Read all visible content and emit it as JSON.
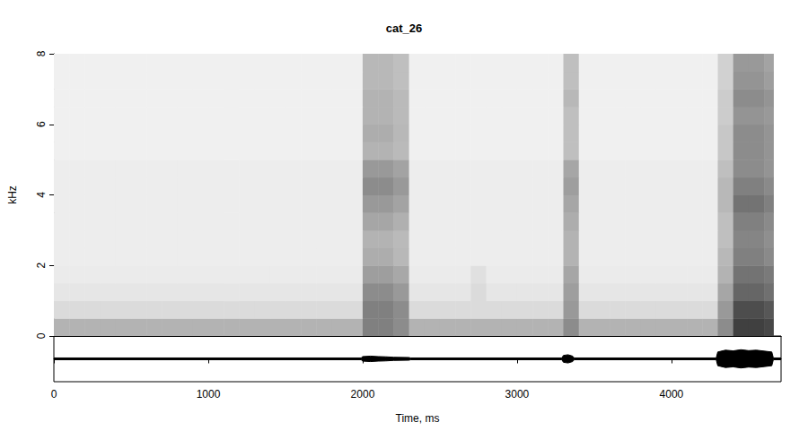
{
  "chart_data": [
    {
      "type": "heatmap",
      "title": "cat_26",
      "y_label": "kHz",
      "xlim": [
        0,
        4710
      ],
      "ylim": [
        0,
        8
      ],
      "yticks": [
        0,
        2,
        4,
        6,
        8
      ],
      "grid": false,
      "tick_labels": "y",
      "zlim": [
        0,
        100
      ],
      "time_bins": [
        0,
        100,
        200,
        300,
        400,
        500,
        600,
        700,
        800,
        900,
        1000,
        1100,
        1200,
        1300,
        1400,
        1500,
        1600,
        1700,
        1800,
        1900,
        2000,
        2100,
        2200,
        2300,
        2400,
        2500,
        2600,
        2700,
        2800,
        2900,
        3000,
        3100,
        3200,
        3300,
        3400,
        3500,
        3600,
        3700,
        3800,
        3900,
        4000,
        4100,
        4200,
        4300,
        4400,
        4500,
        4600,
        4660
      ],
      "freq_bins": [
        0,
        0.5,
        1,
        1.5,
        2,
        2.5,
        3,
        3.5,
        4,
        4.5,
        5,
        5.5,
        6,
        6.5,
        7,
        7.5,
        8
      ],
      "z": [
        [
          30,
          30,
          30,
          30,
          30,
          30,
          30,
          30,
          30,
          30,
          30,
          30,
          30,
          30,
          30,
          30,
          30,
          30,
          30,
          30,
          50,
          50,
          45,
          30,
          30,
          30,
          30,
          30,
          30,
          30,
          30,
          30,
          30,
          45,
          30,
          30,
          30,
          30,
          30,
          30,
          30,
          30,
          30,
          45,
          75,
          75,
          72
        ],
        [
          14,
          14,
          14,
          14,
          14,
          14,
          14,
          14,
          14,
          14,
          14,
          14,
          14,
          14,
          14,
          14,
          14,
          14,
          14,
          14,
          50,
          50,
          45,
          14,
          14,
          14,
          14,
          14,
          14,
          14,
          14,
          14,
          14,
          40,
          14,
          14,
          14,
          14,
          14,
          14,
          14,
          14,
          14,
          40,
          70,
          70,
          66
        ],
        [
          10,
          10,
          10,
          10,
          10,
          10,
          10,
          10,
          10,
          10,
          10,
          10,
          10,
          10,
          10,
          10,
          10,
          10,
          10,
          10,
          45,
          45,
          40,
          10,
          10,
          10,
          10,
          14,
          10,
          10,
          10,
          10,
          10,
          38,
          10,
          10,
          10,
          10,
          10,
          10,
          10,
          10,
          10,
          35,
          60,
          60,
          56
        ],
        [
          8,
          8,
          8,
          8,
          8,
          8,
          8,
          8,
          8,
          8,
          8,
          8,
          8,
          8,
          8,
          8,
          8,
          8,
          8,
          8,
          38,
          38,
          34,
          8,
          8,
          8,
          8,
          12,
          8,
          8,
          8,
          8,
          8,
          35,
          8,
          8,
          8,
          8,
          8,
          8,
          8,
          8,
          8,
          30,
          55,
          55,
          52
        ],
        [
          7,
          7,
          7,
          7,
          7,
          7,
          7,
          7,
          7,
          7,
          7,
          7,
          7,
          7,
          7,
          7,
          7,
          7,
          7,
          7,
          32,
          32,
          28,
          7,
          7,
          7,
          7,
          7,
          7,
          7,
          7,
          7,
          7,
          30,
          7,
          7,
          7,
          7,
          7,
          7,
          7,
          7,
          7,
          28,
          50,
          50,
          46
        ],
        [
          7,
          7,
          7,
          7,
          7,
          7,
          7,
          7,
          7,
          7,
          7,
          7,
          7,
          7,
          7,
          7,
          7,
          7,
          7,
          7,
          30,
          30,
          27,
          7,
          7,
          7,
          7,
          7,
          7,
          7,
          7,
          7,
          7,
          30,
          7,
          7,
          7,
          7,
          7,
          7,
          7,
          7,
          7,
          25,
          48,
          48,
          44
        ],
        [
          7,
          7,
          7,
          7,
          7,
          7,
          7,
          7,
          7,
          7,
          7,
          7,
          7,
          7,
          7,
          7,
          7,
          7,
          7,
          7,
          35,
          35,
          31,
          7,
          7,
          7,
          7,
          7,
          7,
          7,
          7,
          7,
          7,
          32,
          7,
          7,
          7,
          7,
          7,
          7,
          7,
          7,
          7,
          25,
          50,
          50,
          46
        ],
        [
          7,
          7,
          7,
          7,
          7,
          7,
          7,
          7,
          7,
          7,
          7,
          7,
          7,
          7,
          7,
          7,
          7,
          7,
          7,
          7,
          40,
          40,
          36,
          7,
          7,
          7,
          7,
          7,
          7,
          7,
          7,
          7,
          7,
          35,
          7,
          7,
          7,
          7,
          7,
          7,
          7,
          7,
          7,
          28,
          55,
          55,
          50
        ],
        [
          7,
          7,
          7,
          7,
          7,
          7,
          7,
          7,
          7,
          7,
          7,
          7,
          7,
          7,
          7,
          7,
          7,
          7,
          7,
          7,
          45,
          45,
          40,
          7,
          7,
          7,
          7,
          7,
          7,
          7,
          7,
          7,
          7,
          38,
          7,
          7,
          7,
          7,
          7,
          7,
          7,
          7,
          7,
          28,
          50,
          50,
          46
        ],
        [
          7,
          7,
          7,
          7,
          7,
          7,
          7,
          7,
          7,
          7,
          7,
          7,
          7,
          7,
          7,
          7,
          7,
          7,
          7,
          7,
          40,
          40,
          36,
          7,
          7,
          7,
          7,
          7,
          7,
          7,
          7,
          7,
          7,
          35,
          7,
          7,
          7,
          7,
          7,
          7,
          7,
          7,
          7,
          25,
          45,
          45,
          42
        ],
        [
          6,
          6,
          6,
          6,
          6,
          6,
          6,
          6,
          6,
          6,
          6,
          6,
          6,
          6,
          6,
          6,
          6,
          6,
          6,
          6,
          30,
          30,
          27,
          6,
          6,
          6,
          6,
          6,
          6,
          6,
          6,
          6,
          6,
          25,
          6,
          6,
          6,
          6,
          6,
          6,
          6,
          6,
          6,
          22,
          45,
          45,
          42
        ],
        [
          6,
          6,
          6,
          6,
          6,
          6,
          6,
          6,
          6,
          6,
          6,
          6,
          6,
          6,
          6,
          6,
          6,
          6,
          6,
          6,
          32,
          32,
          28,
          6,
          6,
          6,
          6,
          6,
          6,
          6,
          6,
          6,
          6,
          25,
          6,
          6,
          6,
          6,
          6,
          6,
          6,
          6,
          6,
          22,
          45,
          45,
          42
        ],
        [
          6,
          6,
          6,
          6,
          6,
          6,
          6,
          6,
          6,
          6,
          6,
          6,
          6,
          6,
          6,
          6,
          6,
          6,
          6,
          6,
          30,
          30,
          27,
          6,
          6,
          6,
          6,
          6,
          6,
          6,
          6,
          6,
          6,
          25,
          6,
          6,
          6,
          6,
          6,
          6,
          6,
          6,
          6,
          20,
          42,
          42,
          40
        ],
        [
          6,
          6,
          6,
          6,
          6,
          6,
          6,
          6,
          6,
          6,
          6,
          6,
          6,
          6,
          6,
          6,
          6,
          6,
          6,
          6,
          30,
          30,
          27,
          6,
          6,
          6,
          6,
          6,
          6,
          6,
          6,
          6,
          6,
          28,
          6,
          6,
          6,
          6,
          6,
          6,
          6,
          6,
          6,
          20,
          45,
          45,
          42
        ],
        [
          6,
          6,
          6,
          6,
          6,
          6,
          6,
          6,
          6,
          6,
          6,
          6,
          6,
          6,
          6,
          6,
          6,
          6,
          6,
          6,
          28,
          28,
          25,
          6,
          6,
          6,
          6,
          6,
          6,
          6,
          6,
          6,
          6,
          25,
          6,
          6,
          6,
          6,
          6,
          6,
          6,
          6,
          6,
          18,
          42,
          42,
          38
        ],
        [
          6,
          6,
          6,
          6,
          6,
          6,
          6,
          6,
          6,
          6,
          6,
          6,
          6,
          6,
          6,
          6,
          6,
          6,
          6,
          6,
          28,
          28,
          25,
          6,
          6,
          6,
          6,
          6,
          6,
          6,
          6,
          6,
          6,
          25,
          6,
          6,
          6,
          6,
          6,
          6,
          6,
          6,
          6,
          18,
          40,
          40,
          36
        ]
      ]
    },
    {
      "type": "area",
      "x_label": "Time, ms",
      "color": "#000000",
      "xlim": [
        0,
        4710
      ],
      "xticks": [
        0,
        1000,
        2000,
        3000,
        4000
      ],
      "ylim": [
        -1,
        1
      ],
      "grid": false,
      "tick_labels": "x",
      "x": [
        0,
        1990,
        2000,
        2050,
        2100,
        2150,
        2200,
        2300,
        2310,
        3290,
        3300,
        3330,
        3360,
        3370,
        4290,
        4300,
        4350,
        4400,
        4450,
        4500,
        4550,
        4600,
        4650,
        4660,
        4710
      ],
      "values": [
        0.04,
        0.04,
        0.1,
        0.12,
        0.1,
        0.09,
        0.07,
        0.06,
        0.04,
        0.04,
        0.15,
        0.18,
        0.12,
        0.04,
        0.04,
        0.3,
        0.38,
        0.35,
        0.4,
        0.36,
        0.38,
        0.34,
        0.3,
        0.04,
        0.04
      ],
      "lower": [
        -0.04,
        -0.04,
        -0.1,
        -0.12,
        -0.1,
        -0.09,
        -0.07,
        -0.06,
        -0.04,
        -0.04,
        -0.15,
        -0.18,
        -0.12,
        -0.04,
        -0.04,
        -0.3,
        -0.38,
        -0.35,
        -0.4,
        -0.36,
        -0.38,
        -0.34,
        -0.3,
        -0.04,
        -0.04
      ]
    }
  ]
}
